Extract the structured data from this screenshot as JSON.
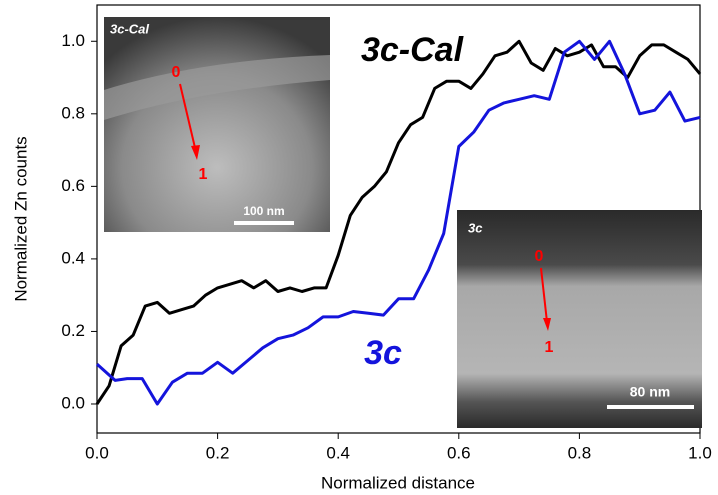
{
  "chart_data": {
    "type": "line",
    "xlabel": "Normalized distance",
    "ylabel": "Normalized Zn counts",
    "xlim": [
      0,
      1
    ],
    "ylim": [
      -0.08,
      1.1
    ],
    "xticks": [
      {
        "value": 0,
        "label": "0.0"
      },
      0.2,
      0.4,
      0.6,
      0.8,
      {
        "value": 1,
        "label": "1.0"
      }
    ],
    "yticks": [
      {
        "value": 0,
        "label": "0.0"
      },
      0.2,
      0.4,
      0.6,
      0.8,
      {
        "value": 1,
        "label": "1.0"
      }
    ],
    "series": [
      {
        "name": "3c-Cal",
        "color": "#000000",
        "x": [
          0,
          0.02,
          0.04,
          0.06,
          0.08,
          0.1,
          0.12,
          0.14,
          0.16,
          0.18,
          0.2,
          0.22,
          0.24,
          0.26,
          0.28,
          0.3,
          0.32,
          0.34,
          0.36,
          0.38,
          0.4,
          0.42,
          0.44,
          0.46,
          0.48,
          0.5,
          0.52,
          0.54,
          0.56,
          0.58,
          0.6,
          0.62,
          0.64,
          0.66,
          0.68,
          0.7,
          0.72,
          0.74,
          0.76,
          0.78,
          0.8,
          0.82,
          0.84,
          0.86,
          0.88,
          0.9,
          0.92,
          0.94,
          0.96,
          0.98,
          1
        ],
        "values": [
          0,
          0.05,
          0.16,
          0.19,
          0.27,
          0.28,
          0.25,
          0.26,
          0.27,
          0.3,
          0.32,
          0.33,
          0.34,
          0.32,
          0.34,
          0.31,
          0.32,
          0.31,
          0.32,
          0.32,
          0.41,
          0.52,
          0.57,
          0.6,
          0.64,
          0.72,
          0.77,
          0.79,
          0.87,
          0.89,
          0.89,
          0.87,
          0.91,
          0.96,
          0.97,
          1.0,
          0.94,
          0.92,
          0.98,
          0.96,
          0.97,
          0.99,
          0.93,
          0.93,
          0.9,
          0.96,
          0.99,
          0.99,
          0.97,
          0.95,
          0.91
        ]
      },
      {
        "name": "3c",
        "color": "#1414dc",
        "x": [
          0,
          0.03,
          0.05,
          0.075,
          0.1,
          0.125,
          0.15,
          0.175,
          0.2,
          0.225,
          0.25,
          0.275,
          0.3,
          0.325,
          0.35,
          0.375,
          0.4,
          0.425,
          0.45,
          0.475,
          0.5,
          0.525,
          0.55,
          0.575,
          0.6,
          0.625,
          0.65,
          0.675,
          0.7,
          0.725,
          0.75,
          0.775,
          0.8,
          0.825,
          0.85,
          0.875,
          0.9,
          0.925,
          0.95,
          0.975,
          1
        ],
        "values": [
          0.11,
          0.065,
          0.07,
          0.07,
          0,
          0.06,
          0.085,
          0.085,
          0.115,
          0.085,
          0.12,
          0.155,
          0.18,
          0.19,
          0.21,
          0.24,
          0.24,
          0.255,
          0.25,
          0.245,
          0.29,
          0.29,
          0.37,
          0.47,
          0.71,
          0.75,
          0.81,
          0.83,
          0.84,
          0.85,
          0.84,
          0.97,
          1.0,
          0.95,
          1.0,
          0.91,
          0.8,
          0.81,
          0.86,
          0.78,
          0.79
        ]
      }
    ],
    "annotations": [
      "3c-Cal",
      "3c"
    ],
    "insets": [
      {
        "label": "3c-Cal",
        "start": "0",
        "end": "1",
        "scale_bar": "100 nm"
      },
      {
        "label": "3c",
        "start": "0",
        "end": "1",
        "scale_bar": "80 nm"
      }
    ]
  }
}
